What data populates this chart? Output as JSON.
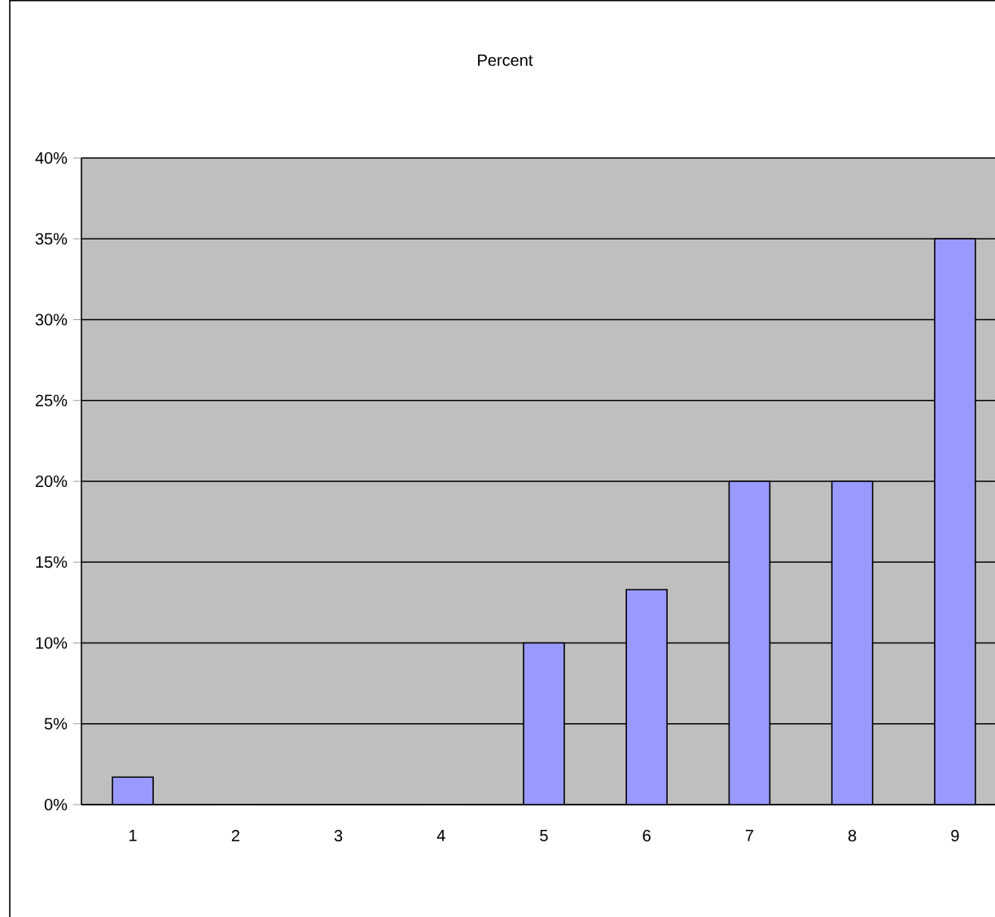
{
  "chart_data": {
    "type": "bar",
    "title": "Percent",
    "categories": [
      "1",
      "2",
      "3",
      "4",
      "5",
      "6",
      "7",
      "8",
      "9"
    ],
    "values": [
      1.7,
      0,
      0,
      0,
      10,
      13.3,
      20,
      20,
      35
    ],
    "color": "#9999ff",
    "ylim": [
      0,
      40
    ],
    "yticks": [
      {
        "value": 0,
        "label": "0%"
      },
      {
        "value": 5,
        "label": "5%"
      },
      {
        "value": 10,
        "label": "10%"
      },
      {
        "value": 15,
        "label": "15%"
      },
      {
        "value": 20,
        "label": "20%"
      },
      {
        "value": 25,
        "label": "25%"
      },
      {
        "value": 30,
        "label": "30%"
      },
      {
        "value": 35,
        "label": "35%"
      },
      {
        "value": 40,
        "label": "40%"
      }
    ],
    "grid": "y"
  }
}
